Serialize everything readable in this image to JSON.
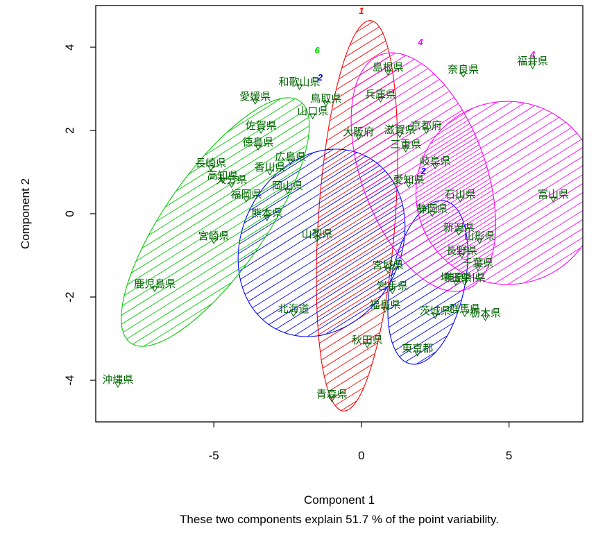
{
  "chart_data": {
    "type": "scatter",
    "title": "",
    "xlabel": "Component 1",
    "ylabel": "Component 2",
    "caption": "These two components explain 51.7 % of the point variability.",
    "xlim": [
      -9.0,
      7.5
    ],
    "ylim": [
      -5.0,
      5.0
    ],
    "xticks": [
      -5,
      0,
      5
    ],
    "yticks": [
      -4,
      -2,
      0,
      2,
      4
    ],
    "xtick_labels": [
      "-5",
      "0",
      "5"
    ],
    "ytick_labels": [
      "-4",
      "-2",
      "0",
      "2",
      "4"
    ],
    "grid": false,
    "legend": "none",
    "colors": {
      "cluster1": "#ff0000",
      "cluster2": "#0000ff",
      "cluster4": "#ff00ff",
      "cluster6": "#00cc00",
      "points": "#006400"
    },
    "clusters": [
      {
        "label": "1",
        "color": "#ff0000",
        "cx": -0.15,
        "cy": -0.05,
        "rx": 1.3,
        "ry": 4.7,
        "angle": -4,
        "label_pos": [
          0.0,
          4.8
        ]
      },
      {
        "label": "2",
        "color": "#0000ff",
        "cx": -1.35,
        "cy": -0.7,
        "rx": 3.3,
        "ry": 1.9,
        "angle": 62,
        "label_pos": [
          -1.4,
          3.2
        ]
      },
      {
        "label": "2",
        "color": "#0000ff",
        "cx": 2.25,
        "cy": -1.65,
        "rx": 1.25,
        "ry": 2.0,
        "angle": -12,
        "label_pos": [
          2.1,
          0.95
        ]
      },
      {
        "label": "4",
        "color": "#ff00ff",
        "cx": 2.1,
        "cy": 1.0,
        "rx": 2.1,
        "ry": 3.0,
        "angle": 20,
        "label_pos": [
          2.0,
          4.05
        ]
      },
      {
        "label": "4",
        "color": "#ff00ff",
        "cx": 4.95,
        "cy": 0.5,
        "rx": 3.1,
        "ry": 2.2,
        "angle": 75,
        "label_pos": [
          5.8,
          3.75
        ]
      },
      {
        "label": "6",
        "color": "#00cc00",
        "cx": -4.95,
        "cy": -0.2,
        "rx": 5.0,
        "ry": 1.2,
        "angle": 55,
        "label_pos": [
          -1.5,
          3.85
        ]
      }
    ],
    "points": [
      {
        "label": "北海道",
        "x": -2.3,
        "y": -2.4
      },
      {
        "label": "青森県",
        "x": -1.0,
        "y": -4.45
      },
      {
        "label": "岩手県",
        "x": 1.05,
        "y": -1.85
      },
      {
        "label": "宮城県",
        "x": 0.9,
        "y": -1.35
      },
      {
        "label": "秋田県",
        "x": 0.2,
        "y": -3.15
      },
      {
        "label": "山形県",
        "x": 4.0,
        "y": -0.65
      },
      {
        "label": "福島県",
        "x": 0.8,
        "y": -2.3
      },
      {
        "label": "茨城県",
        "x": 2.5,
        "y": -2.45
      },
      {
        "label": "栃木県",
        "x": 4.2,
        "y": -2.5
      },
      {
        "label": "群馬県",
        "x": 3.5,
        "y": -2.4
      },
      {
        "label": "埼玉県",
        "x": 3.2,
        "y": -1.65
      },
      {
        "label": "千葉県",
        "x": 3.95,
        "y": -1.3
      },
      {
        "label": "東京都",
        "x": 1.9,
        "y": -3.35
      },
      {
        "label": "神奈川県",
        "x": 3.5,
        "y": -1.65
      },
      {
        "label": "新潟県",
        "x": 3.3,
        "y": -0.45
      },
      {
        "label": "富山県",
        "x": 6.5,
        "y": 0.35
      },
      {
        "label": "石川県",
        "x": 3.35,
        "y": 0.35
      },
      {
        "label": "福井県",
        "x": 5.8,
        "y": 3.55
      },
      {
        "label": "山梨県",
        "x": -1.5,
        "y": -0.6
      },
      {
        "label": "長野県",
        "x": 3.4,
        "y": -1.0
      },
      {
        "label": "岐阜県",
        "x": 2.5,
        "y": 1.15
      },
      {
        "label": "静岡県",
        "x": 2.4,
        "y": 0.0
      },
      {
        "label": "愛知県",
        "x": 1.6,
        "y": 0.7
      },
      {
        "label": "三重県",
        "x": 1.5,
        "y": 1.55
      },
      {
        "label": "滋賀県",
        "x": 1.3,
        "y": 1.9
      },
      {
        "label": "京都府",
        "x": 2.2,
        "y": 2.0
      },
      {
        "label": "大阪府",
        "x": -0.1,
        "y": 1.85
      },
      {
        "label": "兵庫県",
        "x": 0.65,
        "y": 2.75
      },
      {
        "label": "奈良県",
        "x": 3.45,
        "y": 3.35
      },
      {
        "label": "和歌山県",
        "x": -2.1,
        "y": 3.05
      },
      {
        "label": "鳥取県",
        "x": -1.2,
        "y": 2.65
      },
      {
        "label": "島根県",
        "x": 0.9,
        "y": 3.4
      },
      {
        "label": "岡山県",
        "x": -2.5,
        "y": 0.55
      },
      {
        "label": "広島県",
        "x": -2.4,
        "y": 1.25
      },
      {
        "label": "山口県",
        "x": -1.65,
        "y": 2.35
      },
      {
        "label": "徳島県",
        "x": -3.5,
        "y": 1.6
      },
      {
        "label": "香川県",
        "x": -3.1,
        "y": 1.0
      },
      {
        "label": "愛媛県",
        "x": -3.6,
        "y": 2.7
      },
      {
        "label": "高知県",
        "x": -4.7,
        "y": 0.8
      },
      {
        "label": "福岡県",
        "x": -3.9,
        "y": 0.35
      },
      {
        "label": "佐賀県",
        "x": -3.4,
        "y": 2.0
      },
      {
        "label": "長崎県",
        "x": -5.1,
        "y": 1.1
      },
      {
        "label": "熊本県",
        "x": -3.2,
        "y": -0.1
      },
      {
        "label": "大分県",
        "x": -4.4,
        "y": 0.7
      },
      {
        "label": "宮崎県",
        "x": -5.0,
        "y": -0.65
      },
      {
        "label": "鹿児島県",
        "x": -7.0,
        "y": -1.8
      },
      {
        "label": "沖縄県",
        "x": -8.25,
        "y": -4.1
      }
    ]
  }
}
